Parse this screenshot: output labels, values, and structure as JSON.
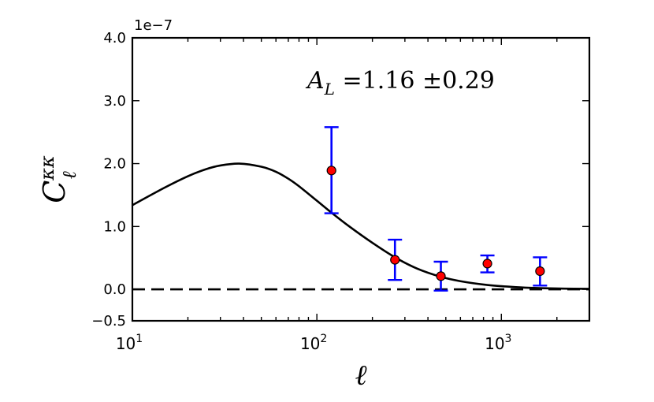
{
  "chart_data": {
    "type": "scatter",
    "x_scale": "log",
    "xlim": [
      10,
      3000
    ],
    "ylim": [
      -0.5,
      4.0
    ],
    "y_multiplier_label": "1e−7",
    "x_ticks": [
      {
        "value": 10,
        "base": "10",
        "exp": "1"
      },
      {
        "value": 100,
        "base": "10",
        "exp": "2"
      },
      {
        "value": 1000,
        "base": "10",
        "exp": "3"
      }
    ],
    "y_ticks": [
      {
        "value": -0.5,
        "label": "−0.5"
      },
      {
        "value": 0.0,
        "label": "0.0"
      },
      {
        "value": 1.0,
        "label": "1.0"
      },
      {
        "value": 2.0,
        "label": "2.0"
      },
      {
        "value": 3.0,
        "label": "3.0"
      },
      {
        "value": 4.0,
        "label": "4.0"
      }
    ],
    "xlabel": "ℓ",
    "ylabel": {
      "main": "C",
      "sup": "κκ",
      "sub": "ℓ"
    },
    "annotation": {
      "symbol": "A",
      "sub": "L",
      "text": "=1.16 ±0.29"
    },
    "points": [
      {
        "x": 120,
        "y": 1.89,
        "ylow": 1.21,
        "yhigh": 2.58
      },
      {
        "x": 265,
        "y": 0.47,
        "ylow": 0.15,
        "yhigh": 0.79
      },
      {
        "x": 470,
        "y": 0.21,
        "ylow": -0.02,
        "yhigh": 0.44
      },
      {
        "x": 840,
        "y": 0.41,
        "ylow": 0.27,
        "yhigh": 0.54
      },
      {
        "x": 1620,
        "y": 0.29,
        "ylow": 0.06,
        "yhigh": 0.51
      }
    ],
    "theory_curve": [
      [
        10,
        1.34
      ],
      [
        15,
        1.62
      ],
      [
        20,
        1.8
      ],
      [
        25,
        1.91
      ],
      [
        30,
        1.97
      ],
      [
        38,
        2.0
      ],
      [
        50,
        1.95
      ],
      [
        60,
        1.87
      ],
      [
        70,
        1.76
      ],
      [
        80,
        1.64
      ],
      [
        100,
        1.41
      ],
      [
        120,
        1.22
      ],
      [
        150,
        1.0
      ],
      [
        200,
        0.74
      ],
      [
        265,
        0.51
      ],
      [
        350,
        0.33
      ],
      [
        470,
        0.2
      ],
      [
        600,
        0.13
      ],
      [
        840,
        0.07
      ],
      [
        1200,
        0.035
      ],
      [
        1620,
        0.02
      ],
      [
        2200,
        0.012
      ],
      [
        3000,
        0.008
      ]
    ],
    "zero_line": {
      "y": 0.0,
      "style": "dashed"
    },
    "colors": {
      "errorbar": "#0000ff",
      "marker": "#ff0000",
      "curve": "#000000"
    },
    "grid": false
  }
}
